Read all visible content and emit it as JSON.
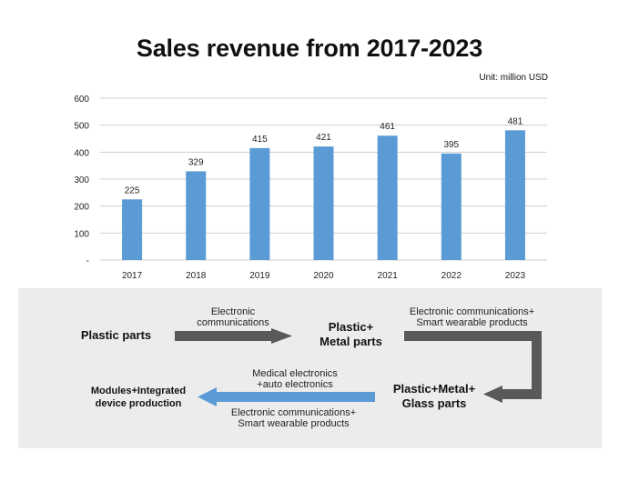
{
  "chart_data": {
    "type": "bar",
    "title": "Sales revenue from 2017-2023",
    "unit": "Unit: million USD",
    "categories": [
      "2017",
      "2018",
      "2019",
      "2020",
      "2021",
      "2022",
      "2023"
    ],
    "values": [
      225,
      329,
      415,
      421,
      461,
      395,
      481
    ],
    "data_labels": [
      "225",
      "329",
      "415",
      "421",
      "461",
      "395",
      "481"
    ],
    "yticks": [
      "-",
      "100",
      "200",
      "300",
      "400",
      "500",
      "600"
    ],
    "ylim": [
      0,
      600
    ],
    "xlabel": "",
    "ylabel": "",
    "grid": true,
    "bar_color": "#5b9bd5"
  },
  "flow": {
    "nodes": {
      "plastic": "Plastic parts",
      "plastic_metal": [
        "Plastic+",
        "Metal parts"
      ],
      "plastic_metal_glass": [
        "Plastic+Metal+",
        "Glass parts"
      ],
      "modules": [
        "Modules+Integrated",
        "device production"
      ]
    },
    "edges": {
      "e1": [
        "Electronic",
        "communications"
      ],
      "e2": [
        "Electronic communications+",
        "Smart wearable products"
      ],
      "e3_top": [
        "Medical electronics",
        "+auto electronics"
      ],
      "e3_bottom": [
        "Electronic communications+",
        "Smart wearable products"
      ]
    },
    "colors": {
      "gray_arrow": "#595959",
      "blue_arrow": "#5b9bd5",
      "panel": "#ececec"
    }
  }
}
